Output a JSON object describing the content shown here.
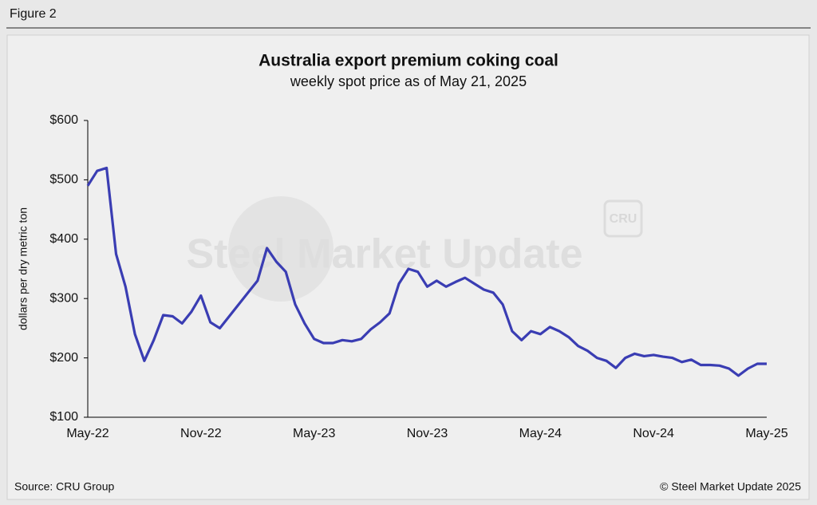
{
  "figure_label": "Figure 2",
  "chart_data": {
    "type": "line",
    "title": "Australia export premium coking coal",
    "subtitle": "weekly spot price as of May 21, 2025",
    "y_label": "dollars per dry metric ton",
    "categories": [
      "May-22",
      null,
      null,
      null,
      null,
      null,
      null,
      null,
      null,
      null,
      null,
      null,
      "Nov-22",
      null,
      null,
      null,
      null,
      null,
      null,
      null,
      null,
      null,
      null,
      null,
      "May-23",
      null,
      null,
      null,
      null,
      null,
      null,
      null,
      null,
      null,
      null,
      null,
      "Nov-23",
      null,
      null,
      null,
      null,
      null,
      null,
      null,
      null,
      null,
      null,
      null,
      "May-24",
      null,
      null,
      null,
      null,
      null,
      null,
      null,
      null,
      null,
      null,
      null,
      "Nov-24",
      null,
      null,
      null,
      null,
      null,
      null,
      null,
      null,
      null,
      null,
      null,
      "May-25"
    ],
    "values": [
      490,
      515,
      520,
      375,
      320,
      240,
      195,
      230,
      272,
      270,
      258,
      278,
      305,
      260,
      250,
      270,
      290,
      310,
      330,
      385,
      362,
      345,
      290,
      258,
      232,
      225,
      225,
      230,
      228,
      232,
      248,
      260,
      275,
      325,
      350,
      345,
      320,
      330,
      320,
      328,
      335,
      325,
      315,
      310,
      290,
      245,
      230,
      245,
      240,
      252,
      245,
      235,
      220,
      212,
      200,
      195,
      183,
      200,
      207,
      203,
      205,
      202,
      200,
      193,
      197,
      188,
      188,
      187,
      182,
      170,
      182,
      190,
      190
    ],
    "color": "#3a3db3",
    "ylim": [
      100,
      600
    ],
    "yticks": [
      {
        "value": 100,
        "label": "$100"
      },
      {
        "value": 200,
        "label": "$200"
      },
      {
        "value": 300,
        "label": "$300"
      },
      {
        "value": 400,
        "label": "$400"
      },
      {
        "value": 500,
        "label": "$500"
      },
      {
        "value": 600,
        "label": "$600"
      }
    ],
    "grid": false,
    "watermark": "Steel Market Update",
    "watermark_logo": "CRU"
  },
  "source": "Source: CRU Group",
  "copyright": "© Steel Market Update 2025"
}
